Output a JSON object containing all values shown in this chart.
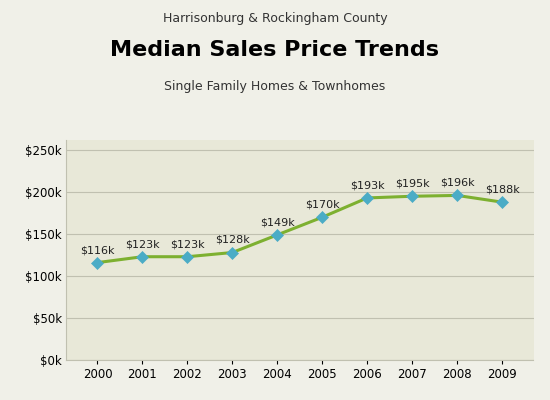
{
  "title": "Median Sales Price Trends",
  "subtitle_top": "Harrisonburg & Rockingham County",
  "subtitle_bottom": "Single Family Homes & Townhomes",
  "years": [
    2000,
    2001,
    2002,
    2003,
    2004,
    2005,
    2006,
    2007,
    2008,
    2009
  ],
  "values": [
    116000,
    123000,
    123000,
    128000,
    149000,
    170000,
    193000,
    195000,
    196000,
    188000
  ],
  "labels": [
    "$116k",
    "$123k",
    "$123k",
    "$128k",
    "$149k",
    "$170k",
    "$193k",
    "$195k",
    "$196k",
    "$188k"
  ],
  "line_color": "#7db030",
  "marker_color": "#4bacc6",
  "marker_style": "D",
  "marker_size": 6,
  "line_width": 2.2,
  "bg_color": "#f0f0e8",
  "plot_bg_color": "#e8e8d8",
  "grid_color": "#c0c0b0",
  "yticks": [
    0,
    50000,
    100000,
    150000,
    200000,
    250000
  ],
  "ylabels": [
    "$0k",
    "$50k",
    "$100k",
    "$150k",
    "$200k",
    "$250k"
  ],
  "ylim": [
    0,
    262000
  ],
  "title_fontsize": 16,
  "subtitle_fontsize": 9,
  "label_fontsize": 8,
  "tick_fontsize": 8.5
}
